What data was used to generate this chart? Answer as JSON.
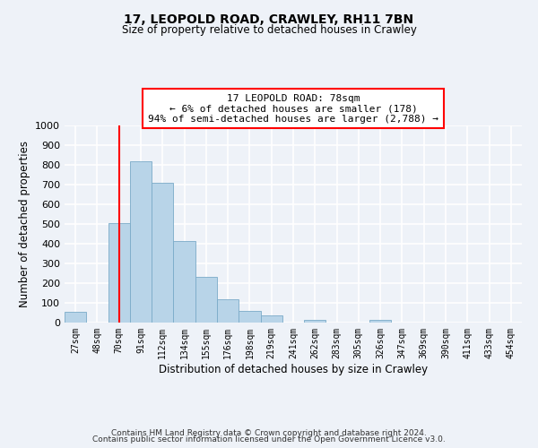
{
  "title": "17, LEOPOLD ROAD, CRAWLEY, RH11 7BN",
  "subtitle": "Size of property relative to detached houses in Crawley",
  "xlabel": "Distribution of detached houses by size in Crawley",
  "ylabel": "Number of detached properties",
  "bin_labels": [
    "27sqm",
    "48sqm",
    "70sqm",
    "91sqm",
    "112sqm",
    "134sqm",
    "155sqm",
    "176sqm",
    "198sqm",
    "219sqm",
    "241sqm",
    "262sqm",
    "283sqm",
    "305sqm",
    "326sqm",
    "347sqm",
    "369sqm",
    "390sqm",
    "411sqm",
    "433sqm",
    "454sqm"
  ],
  "bar_heights": [
    55,
    0,
    505,
    820,
    710,
    415,
    230,
    118,
    57,
    35,
    0,
    13,
    0,
    0,
    13,
    0,
    0,
    0,
    0,
    0,
    0
  ],
  "bar_color": "#b8d4e8",
  "bar_edge_color": "#7aabc8",
  "vline_x_index": 2,
  "vline_color": "red",
  "ylim": [
    0,
    1000
  ],
  "annotation_title": "17 LEOPOLD ROAD: 78sqm",
  "annotation_line1": "← 6% of detached houses are smaller (178)",
  "annotation_line2": "94% of semi-detached houses are larger (2,788) →",
  "annotation_box_color": "white",
  "annotation_box_edge_color": "red",
  "footer_line1": "Contains HM Land Registry data © Crown copyright and database right 2024.",
  "footer_line2": "Contains public sector information licensed under the Open Government Licence v3.0.",
  "background_color": "#eef2f8",
  "grid_color": "white",
  "yticks": [
    0,
    100,
    200,
    300,
    400,
    500,
    600,
    700,
    800,
    900,
    1000
  ]
}
